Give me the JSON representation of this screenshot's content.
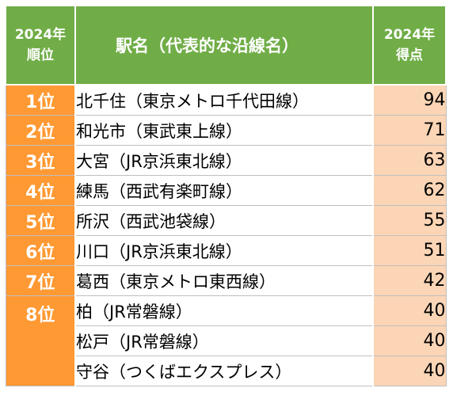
{
  "header": {
    "rank_line1": "2024年",
    "rank_line2": "順位",
    "station": "駅名（代表的な沿線名）",
    "score_line1": "2024年",
    "score_line2": "得点"
  },
  "rows": [
    {
      "rank": "1位",
      "station": "北千住（東京メトロ千代田線）",
      "score": "94"
    },
    {
      "rank": "2位",
      "station": "和光市（東武東上線）",
      "score": "71"
    },
    {
      "rank": "3位",
      "station": "大宮（JR京浜東北線）",
      "score": "63"
    },
    {
      "rank": "4位",
      "station": "練馬（西武有楽町線）",
      "score": "62"
    },
    {
      "rank": "5位",
      "station": "所沢（西武池袋線）",
      "score": "55"
    },
    {
      "rank": "6位",
      "station": "川口（JR京浜東北線）",
      "score": "51"
    },
    {
      "rank": "7位",
      "station": "葛西（東京メトロ東西線）",
      "score": "42"
    },
    {
      "rank": "8位",
      "station": "柏（JR常磐線）",
      "score": "40"
    },
    {
      "rank": "",
      "station": "松戸（JR常磐線）",
      "score": "40"
    },
    {
      "rank": "",
      "station": "守谷（つくばエクスプレス）",
      "score": "40"
    }
  ],
  "colors": {
    "header_bg": "#70ad47",
    "rank_bg": "#ff9933",
    "score_bg": "#fbd5b5"
  }
}
